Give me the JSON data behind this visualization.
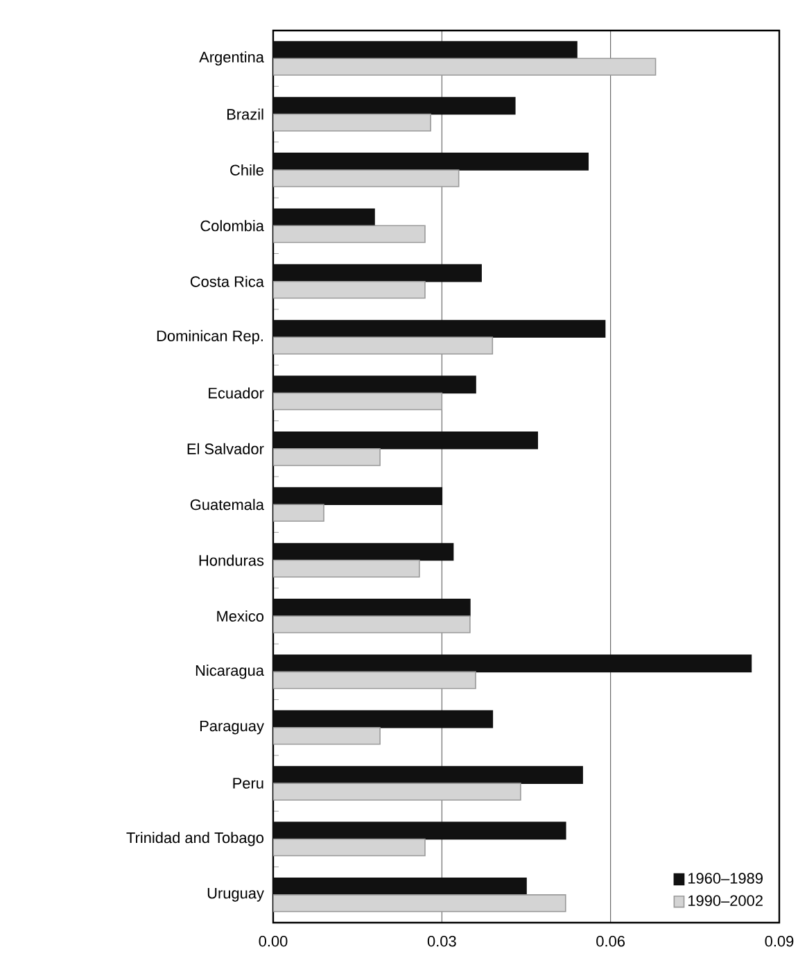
{
  "chart_data": {
    "type": "bar",
    "orientation": "horizontal",
    "categories": [
      "Argentina",
      "Brazil",
      "Chile",
      "Colombia",
      "Costa Rica",
      "Dominican Rep.",
      "Ecuador",
      "El Salvador",
      "Guatemala",
      "Honduras",
      "Mexico",
      "Nicaragua",
      "Paraguay",
      "Peru",
      "Trinidad and Tobago",
      "Uruguay"
    ],
    "series": [
      {
        "name": "1960–1989",
        "color": "#111111",
        "values": [
          0.054,
          0.043,
          0.056,
          0.018,
          0.037,
          0.059,
          0.036,
          0.047,
          0.03,
          0.032,
          0.035,
          0.085,
          0.039,
          0.055,
          0.052,
          0.045
        ]
      },
      {
        "name": "1990–2002",
        "color": "#d4d4d4",
        "values": [
          0.068,
          0.028,
          0.033,
          0.027,
          0.027,
          0.039,
          0.03,
          0.019,
          0.009,
          0.026,
          0.035,
          0.036,
          0.019,
          0.044,
          0.027,
          0.052
        ]
      }
    ],
    "xlim": [
      0,
      0.09
    ],
    "xticks": [
      {
        "value": 0,
        "label": "0.00"
      },
      0.03,
      0.06,
      0.09
    ],
    "grid": "x",
    "legend": "bottom right"
  }
}
